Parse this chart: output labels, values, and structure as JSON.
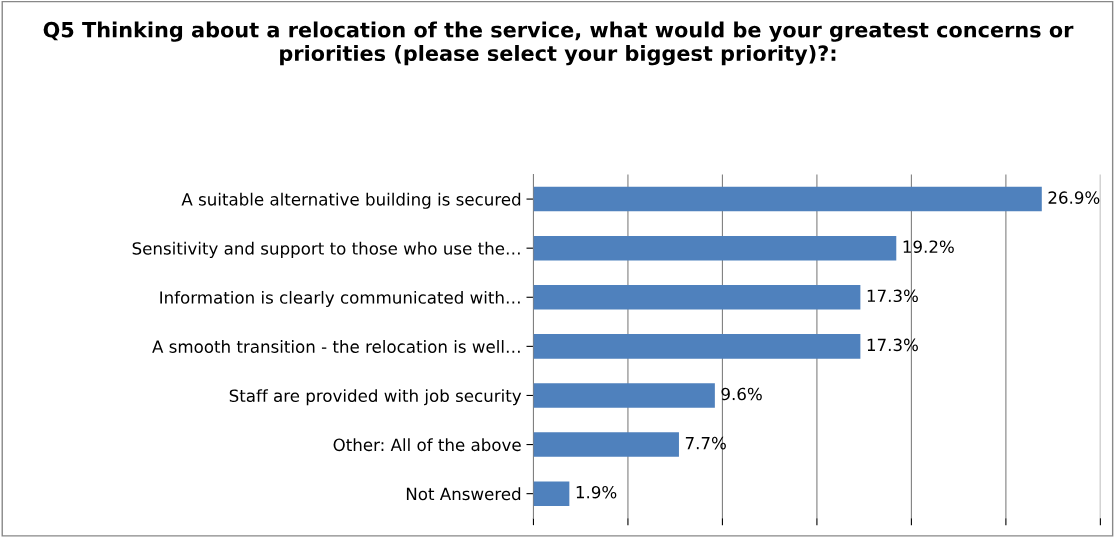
{
  "chart_data": {
    "type": "bar",
    "orientation": "horizontal",
    "title": "Q5 Thinking about a relocation of the service, what would be your greatest concerns or priorities (please select your biggest priority)?:",
    "categories": [
      "A suitable alternative building is secured",
      "Sensitivity and support to those who use the…",
      "Information is clearly communicated with…",
      "A smooth transition - the relocation is well…",
      "Staff are provided with job security",
      "Other: All of the above",
      "Not Answered"
    ],
    "values": [
      26.9,
      19.2,
      17.3,
      17.3,
      9.6,
      7.7,
      1.9
    ],
    "value_labels": [
      "26.9%",
      "19.2%",
      "17.3%",
      "17.3%",
      "9.6%",
      "7.7%",
      "1.9%"
    ],
    "color": "#4f81bd",
    "xlim": [
      0,
      30
    ],
    "xticks": [
      {
        "value": 0,
        "label": null
      },
      {
        "value": 5,
        "label": null
      },
      {
        "value": 10,
        "label": null
      },
      {
        "value": 15,
        "label": null
      },
      {
        "value": 20,
        "label": null
      },
      {
        "value": 25,
        "label": null
      },
      {
        "value": 30,
        "label": null
      }
    ],
    "grid": "x",
    "legend": false,
    "tick_labels": "y"
  }
}
